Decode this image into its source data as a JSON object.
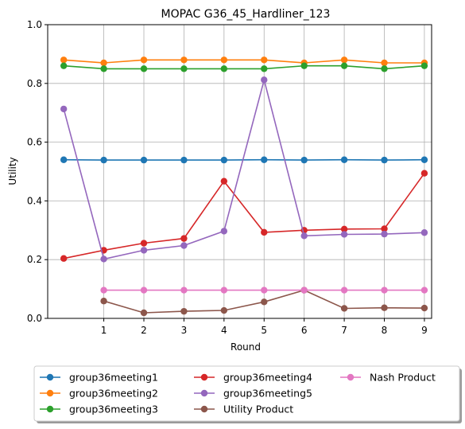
{
  "chart_data": {
    "type": "line",
    "title": "MOPAC G36_45_Hardliner_123",
    "xlabel": "Round",
    "ylabel": "Utility",
    "xlim": [
      -0.4,
      9.18
    ],
    "ylim": [
      0,
      1.0
    ],
    "xticks": [
      1,
      2,
      3,
      4,
      5,
      6,
      7,
      8,
      9
    ],
    "yticks": [
      0.0,
      0.2,
      0.4,
      0.6,
      0.8,
      1.0
    ],
    "ytick_labels": [
      "0.0",
      "0.2",
      "0.4",
      "0.6",
      "0.8",
      "1.0"
    ],
    "grid": true,
    "legend_position": "below plot, 3 columns",
    "series": [
      {
        "name": "group36meeting1",
        "color": "#1f77b4",
        "x": [
          0,
          1,
          2,
          3,
          4,
          5,
          6,
          7,
          8,
          9
        ],
        "values": [
          0.54,
          0.539,
          0.539,
          0.539,
          0.539,
          0.54,
          0.539,
          0.54,
          0.539,
          0.54
        ]
      },
      {
        "name": "group36meeting2",
        "color": "#ff7f0e",
        "x": [
          0,
          1,
          2,
          3,
          4,
          5,
          6,
          7,
          8,
          9
        ],
        "values": [
          0.88,
          0.87,
          0.88,
          0.88,
          0.88,
          0.88,
          0.87,
          0.88,
          0.87,
          0.87
        ]
      },
      {
        "name": "group36meeting3",
        "color": "#2ca02c",
        "x": [
          0,
          1,
          2,
          3,
          4,
          5,
          6,
          7,
          8,
          9
        ],
        "values": [
          0.86,
          0.85,
          0.85,
          0.85,
          0.85,
          0.85,
          0.86,
          0.86,
          0.85,
          0.86
        ]
      },
      {
        "name": "group36meeting4",
        "color": "#d62728",
        "x": [
          0,
          1,
          2,
          3,
          4,
          5,
          6,
          7,
          8,
          9
        ],
        "values": [
          0.204,
          0.232,
          0.256,
          0.272,
          0.467,
          0.293,
          0.3,
          0.304,
          0.305,
          0.494
        ]
      },
      {
        "name": "group36meeting5",
        "color": "#9467bd",
        "x": [
          0,
          1,
          2,
          3,
          4,
          5,
          6,
          7,
          8,
          9
        ],
        "values": [
          0.713,
          0.202,
          0.232,
          0.248,
          0.297,
          0.812,
          0.281,
          0.286,
          0.287,
          0.292
        ]
      },
      {
        "name": "Utility Product",
        "color": "#8c564b",
        "x": [
          1,
          2,
          3,
          4,
          5,
          6,
          7,
          8,
          9
        ],
        "values": [
          0.059,
          0.019,
          0.024,
          0.027,
          0.056,
          0.096,
          0.034,
          0.036,
          0.035
        ]
      },
      {
        "name": "Nash Product",
        "color": "#e377c2",
        "x": [
          1,
          2,
          3,
          4,
          5,
          6,
          7,
          8,
          9
        ],
        "values": [
          0.096,
          0.096,
          0.096,
          0.096,
          0.096,
          0.096,
          0.096,
          0.096,
          0.096
        ]
      }
    ]
  }
}
